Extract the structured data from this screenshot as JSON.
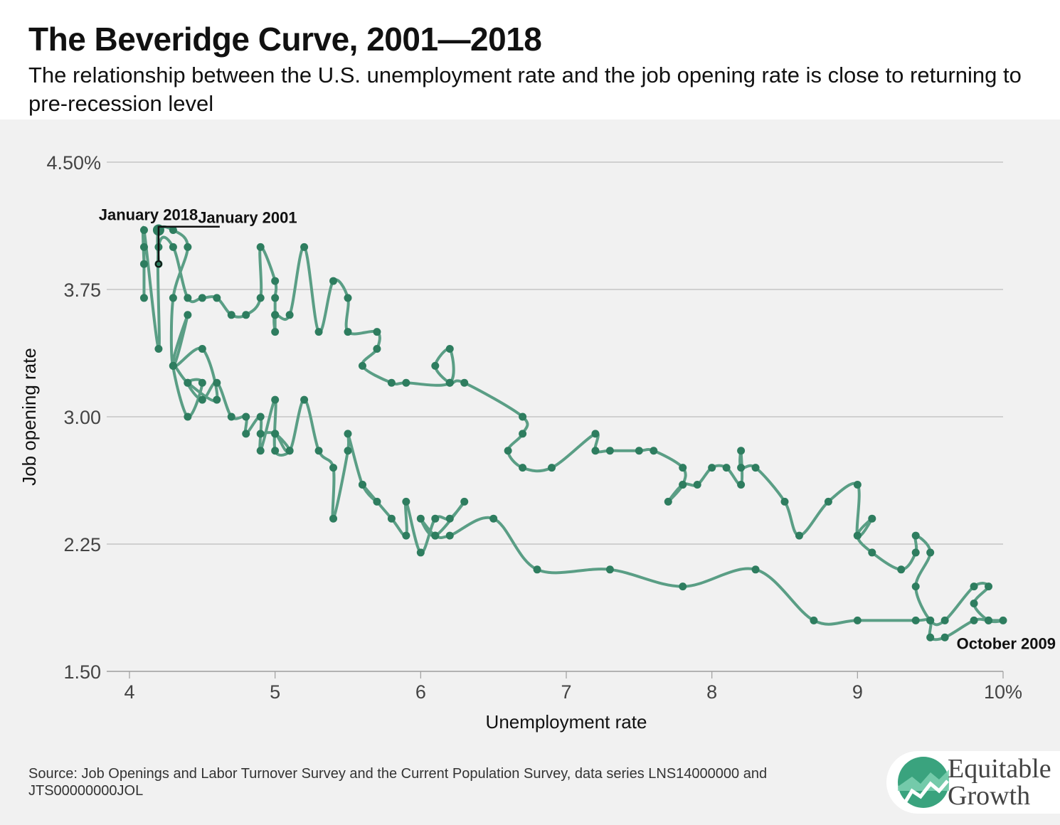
{
  "header": {
    "title": "The Beveridge Curve, 2001—2018",
    "subtitle": "The relationship between the U.S. unemployment rate and the job opening rate is close to returning to pre-recession level"
  },
  "footer": {
    "source": "Source: Job Openings and Labor Turnover Survey and the Current Population Survey, data series LNS14000000 and JTS00000000JOL",
    "logo_line1": "Equitable",
    "logo_line2": "Growth"
  },
  "colors": {
    "line": "#5a9e85",
    "point": "#2e7d5f",
    "grid": "#bdbdbd",
    "background": "#f1f1f1",
    "logo_green": "#3aa37e"
  },
  "chart_data": {
    "type": "line",
    "title": "",
    "xlabel": "Unemployment rate",
    "ylabel": "Job opening rate",
    "xlim": [
      4,
      10
    ],
    "ylim": [
      1.5,
      4.5
    ],
    "x_ticks": [
      4,
      5,
      6,
      7,
      8,
      9,
      10
    ],
    "x_tick_labels": [
      "4",
      "5",
      "6",
      "7",
      "8",
      "9",
      "10%"
    ],
    "y_ticks": [
      1.5,
      2.25,
      3.0,
      3.75,
      4.5
    ],
    "y_tick_labels": [
      "1.50",
      "2.25",
      "3.00",
      "3.75",
      "4.50%"
    ],
    "grid": "horizontal",
    "annotations": [
      {
        "text": "January 2001",
        "x": 4.2,
        "y": 3.9
      },
      {
        "text": "January 2018",
        "x": 4.3,
        "y": 4.1
      },
      {
        "text": "October 2009",
        "x": 10.0,
        "y": 1.8
      }
    ],
    "series": [
      {
        "x": [
          4.2,
          4.2,
          4.3,
          4.4,
          4.3,
          4.3,
          4.4,
          4.3,
          4.5,
          4.6,
          4.4,
          4.3,
          4.4,
          4.5,
          4.4,
          4.5,
          4.6,
          4.7,
          4.8,
          4.8,
          4.9,
          4.9,
          5.0,
          5.0,
          5.1,
          5.0,
          4.9,
          5.0,
          5.1,
          5.2,
          5.3,
          5.4,
          5.4,
          5.5,
          5.5,
          5.6,
          5.7,
          5.6,
          5.8,
          5.9,
          5.9,
          6.0,
          6.1,
          6.2,
          6.3,
          6.1,
          6.0,
          6.1,
          6.2,
          6.5,
          6.8,
          7.3,
          7.8,
          8.3,
          8.7,
          9.0,
          9.4,
          9.5,
          9.5,
          9.6,
          9.8,
          9.9,
          10.0,
          9.9,
          9.8,
          9.9,
          9.8,
          9.6,
          9.5,
          9.4,
          9.5,
          9.4,
          9.4,
          9.3,
          9.1,
          9.0,
          9.1,
          9.0,
          9.0,
          8.8,
          8.6,
          8.5,
          8.3,
          8.2,
          8.2,
          8.2,
          8.1,
          8.0,
          7.9,
          7.8,
          7.7,
          7.8,
          7.8,
          7.6,
          7.5,
          7.3,
          7.2,
          7.2,
          6.9,
          6.7,
          6.6,
          6.7,
          6.7,
          6.3,
          6.2,
          6.1,
          6.2,
          6.2,
          5.9,
          5.8,
          5.6,
          5.7,
          5.7,
          5.5,
          5.5,
          5.4,
          5.3,
          5.2,
          5.1,
          5.0,
          5.0,
          5.0,
          5.0,
          5.0,
          4.9,
          4.9,
          4.8,
          4.7,
          4.6,
          4.5,
          4.4,
          4.3,
          4.2,
          4.2,
          4.1,
          4.1,
          4.1,
          4.1
        ],
        "y": [
          3.9,
          4.1,
          4.1,
          4.0,
          3.7,
          3.3,
          3.6,
          3.3,
          3.4,
          3.1,
          3.2,
          3.3,
          3.0,
          3.2,
          3.2,
          3.1,
          3.2,
          3.0,
          3.0,
          2.9,
          3.0,
          2.8,
          3.1,
          2.8,
          2.8,
          2.9,
          2.9,
          2.9,
          2.8,
          3.1,
          2.8,
          2.7,
          2.4,
          2.8,
          2.9,
          2.6,
          2.5,
          2.6,
          2.4,
          2.3,
          2.5,
          2.2,
          2.4,
          2.4,
          2.5,
          2.3,
          2.4,
          2.3,
          2.3,
          2.4,
          2.1,
          2.1,
          2.0,
          2.1,
          1.8,
          1.8,
          1.8,
          1.8,
          1.7,
          1.7,
          1.8,
          1.8,
          1.8,
          1.8,
          1.9,
          2.0,
          2.0,
          1.8,
          1.8,
          2.0,
          2.2,
          2.3,
          2.2,
          2.1,
          2.2,
          2.3,
          2.4,
          2.3,
          2.6,
          2.5,
          2.3,
          2.5,
          2.7,
          2.7,
          2.8,
          2.6,
          2.7,
          2.7,
          2.6,
          2.6,
          2.5,
          2.6,
          2.7,
          2.8,
          2.8,
          2.8,
          2.8,
          2.9,
          2.7,
          2.7,
          2.8,
          2.9,
          3.0,
          3.2,
          3.2,
          3.3,
          3.4,
          3.2,
          3.2,
          3.2,
          3.3,
          3.4,
          3.5,
          3.5,
          3.7,
          3.8,
          3.5,
          4.0,
          3.6,
          3.6,
          3.5,
          3.6,
          3.7,
          3.8,
          4.0,
          3.7,
          3.6,
          3.6,
          3.7,
          3.7,
          3.7,
          4.0,
          4.0,
          3.4,
          4.1,
          3.9,
          4.0,
          3.7
        ]
      }
    ]
  }
}
